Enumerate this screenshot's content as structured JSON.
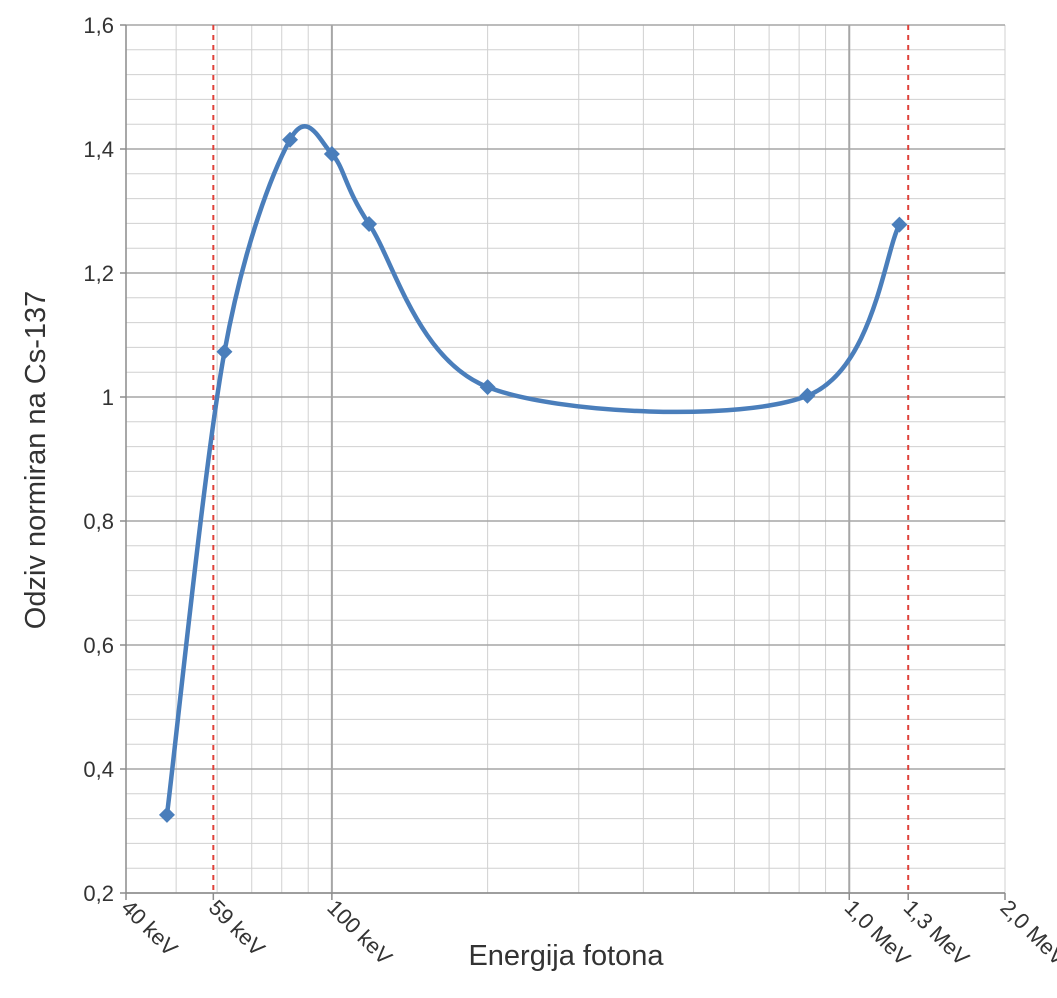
{
  "chart_data": {
    "type": "line",
    "title": "",
    "xlabel": "Energija fotona",
    "ylabel": "Odziv normiran na Cs-137",
    "x_scale": "log",
    "xlim": [
      40,
      2000
    ],
    "ylim": [
      0.2,
      1.6
    ],
    "y_ticks": [
      0.2,
      0.4,
      0.6,
      0.8,
      1.0,
      1.2,
      1.4,
      1.6
    ],
    "y_tick_labels": [
      "0,2",
      "0,4",
      "0,6",
      "0,8",
      "1",
      "1,2",
      "1,4",
      "1,6"
    ],
    "x_ticks": [
      40,
      59,
      100,
      1000,
      1300,
      2000
    ],
    "x_tick_labels": [
      "40 keV",
      "59 keV",
      "100 keV",
      "1,0 MeV",
      "1,3 MeV",
      "2,0 MeV"
    ],
    "reference_lines_x": [
      59,
      1300
    ],
    "grid": true,
    "legend": "none",
    "series": [
      {
        "color": "#4a7ebb",
        "marker": "diamond",
        "smooth": true,
        "x": [
          48,
          62,
          83,
          100,
          118,
          200,
          830,
          1250
        ],
        "y": [
          0.326,
          1.073,
          1.415,
          1.392,
          1.279,
          1.016,
          1.002,
          1.278
        ]
      }
    ]
  }
}
